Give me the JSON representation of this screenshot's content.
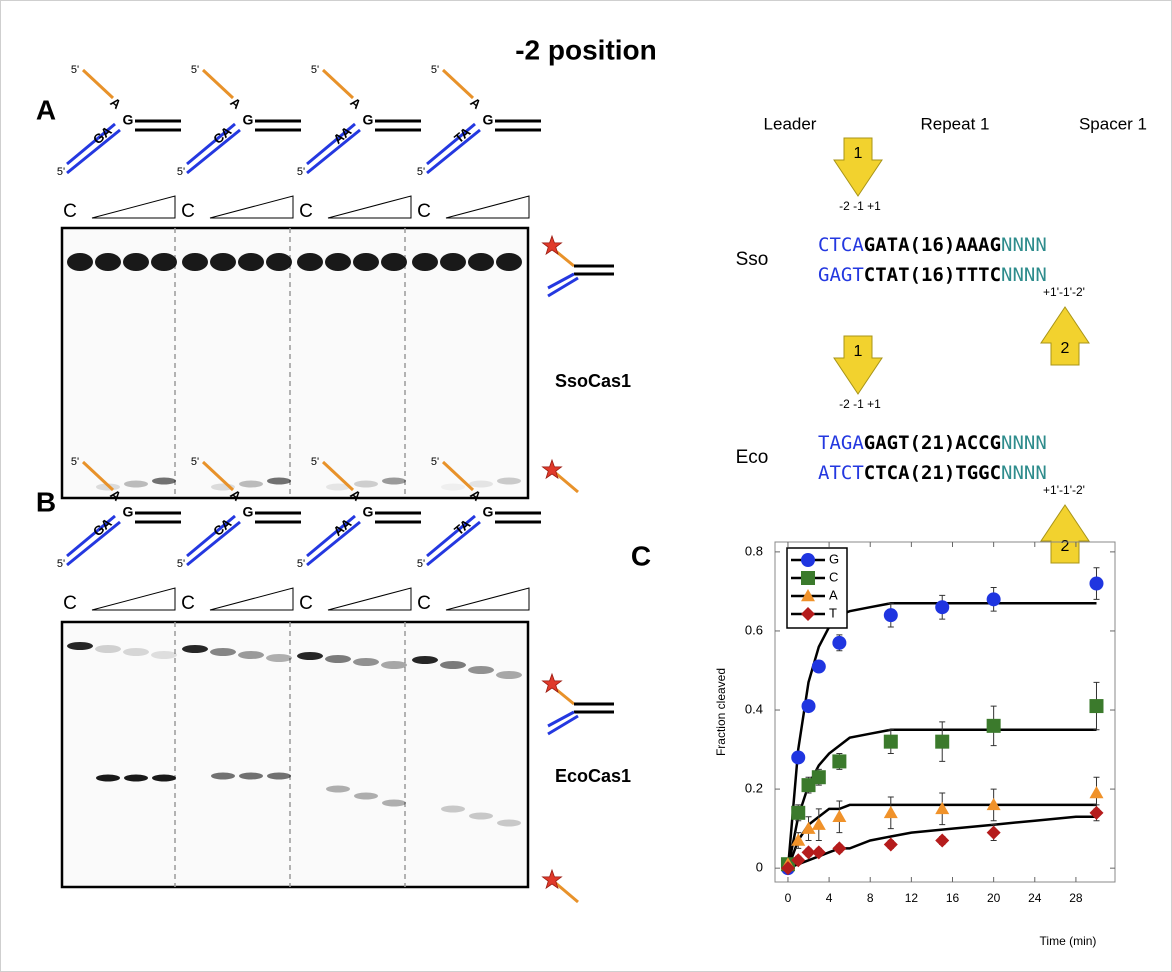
{
  "title": "-2 position",
  "panel_a": {
    "label": "A",
    "constructs": [
      {
        "top_end": "5'",
        "flap": "A",
        "g": "G",
        "pair": "GA",
        "bottom_end": "5'"
      },
      {
        "top_end": "5'",
        "flap": "A",
        "g": "G",
        "pair": "CA",
        "bottom_end": "5'"
      },
      {
        "top_end": "5'",
        "flap": "A",
        "g": "G",
        "pair": "AA",
        "bottom_end": "5'"
      },
      {
        "top_end": "5'",
        "flap": "A",
        "g": "G",
        "pair": "TA",
        "bottom_end": "5'"
      }
    ],
    "lanes": [
      "C",
      "C",
      "C",
      "C"
    ],
    "enzyme": "SsoCas1"
  },
  "panel_b": {
    "label": "B",
    "constructs": [
      {
        "top_end": "5'",
        "flap": "A",
        "g": "G",
        "pair": "GA",
        "bottom_end": "5'"
      },
      {
        "top_end": "5'",
        "flap": "A",
        "g": "G",
        "pair": "CA",
        "bottom_end": "5'"
      },
      {
        "top_end": "5'",
        "flap": "A",
        "g": "G",
        "pair": "AA",
        "bottom_end": "5'"
      },
      {
        "top_end": "5'",
        "flap": "A",
        "g": "G",
        "pair": "TA",
        "bottom_end": "5'"
      }
    ],
    "lanes": [
      "C",
      "C",
      "C",
      "C"
    ],
    "enzyme": "EcoCas1"
  },
  "schematic": {
    "headers": [
      "Leader",
      "Repeat 1",
      "Spacer 1"
    ],
    "blocks": [
      {
        "organism": "Sso",
        "arrow_top": "1",
        "positions_top": "-2 -1 +1",
        "top": [
          "CTCA",
          "GATA(16)AAAG",
          "NNNN"
        ],
        "bottom": [
          "GAGT",
          "CTAT(16)TTTC",
          "NNNN"
        ],
        "positions_bottom": "+1'-1'-2'",
        "arrow_bottom": "2"
      },
      {
        "organism": "Eco",
        "arrow_top": "1",
        "positions_top": "-2 -1 +1",
        "top": [
          "TAGA",
          "GAGT(21)ACCG",
          "NNNN"
        ],
        "bottom": [
          "ATCT",
          "CTCA(21)TGGC",
          "NNNN"
        ],
        "positions_bottom": "+1'-1'-2'",
        "arrow_bottom": "2"
      }
    ]
  },
  "chart_data": {
    "type": "scatter",
    "panel_label": "C",
    "x_label": "Time (min)",
    "y_label": "Fraction cleaved",
    "x": [
      0,
      1,
      2,
      3,
      5,
      10,
      15,
      20,
      30
    ],
    "fit_x": [
      0,
      1,
      2,
      3,
      4,
      5,
      6,
      8,
      10,
      12,
      16,
      20,
      24,
      28,
      30
    ],
    "series": [
      {
        "name": "G",
        "color": "#1f35e0",
        "marker": "circle",
        "values": [
          0,
          0.28,
          0.41,
          0.51,
          0.57,
          0.64,
          0.66,
          0.68,
          0.72
        ],
        "errors": [
          0,
          0.01,
          0.01,
          0.01,
          0.02,
          0.03,
          0.03,
          0.03,
          0.04
        ],
        "fit": [
          0,
          0.3,
          0.47,
          0.56,
          0.61,
          0.64,
          0.65,
          0.66,
          0.67,
          0.67,
          0.67,
          0.67,
          0.67,
          0.67,
          0.67
        ]
      },
      {
        "name": "C",
        "color": "#3b7a2c",
        "marker": "square",
        "values": [
          0.01,
          0.14,
          0.21,
          0.23,
          0.27,
          0.32,
          0.32,
          0.36,
          0.41
        ],
        "errors": [
          0,
          0.02,
          0.02,
          0.02,
          0.02,
          0.03,
          0.05,
          0.05,
          0.06
        ],
        "fit": [
          0,
          0.13,
          0.21,
          0.26,
          0.29,
          0.31,
          0.33,
          0.34,
          0.35,
          0.35,
          0.35,
          0.35,
          0.35,
          0.35,
          0.35
        ]
      },
      {
        "name": "A",
        "color": "#f0922a",
        "marker": "triangle",
        "values": [
          0.01,
          0.07,
          0.1,
          0.11,
          0.13,
          0.14,
          0.15,
          0.16,
          0.19
        ],
        "errors": [
          0,
          0.02,
          0.03,
          0.04,
          0.04,
          0.04,
          0.04,
          0.04,
          0.04
        ],
        "fit": [
          0,
          0.07,
          0.11,
          0.13,
          0.15,
          0.15,
          0.16,
          0.16,
          0.16,
          0.16,
          0.16,
          0.16,
          0.16,
          0.16,
          0.16
        ]
      },
      {
        "name": "T",
        "color": "#b51c1c",
        "marker": "diamond",
        "values": [
          0,
          0.02,
          0.04,
          0.04,
          0.05,
          0.06,
          0.07,
          0.09,
          0.14
        ],
        "errors": [
          0,
          0.01,
          0.01,
          0.01,
          0.01,
          0.01,
          0.01,
          0.02,
          0.02
        ],
        "fit": [
          0,
          0.01,
          0.02,
          0.03,
          0.04,
          0.05,
          0.05,
          0.07,
          0.08,
          0.09,
          0.1,
          0.11,
          0.12,
          0.13,
          0.13
        ]
      }
    ],
    "xlim": [
      -1.26,
      31.8
    ],
    "ylim": [
      -0.035,
      0.825
    ],
    "xticks": [
      0,
      4,
      8,
      12,
      16,
      20,
      24,
      28
    ],
    "yticks": [
      0,
      0.2,
      0.4,
      0.6,
      0.8
    ],
    "legend": "upper-left"
  }
}
